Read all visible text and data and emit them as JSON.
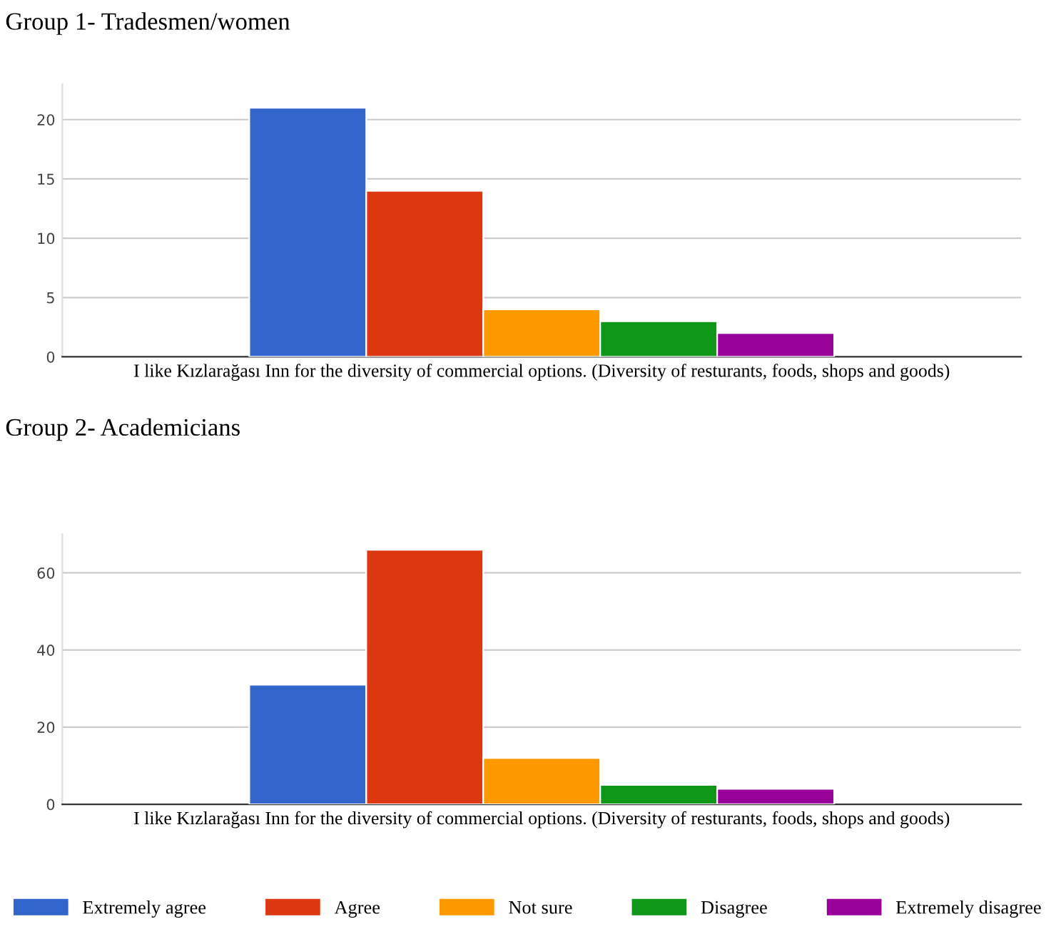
{
  "chart_data": [
    {
      "type": "bar",
      "title": "Group 1- Tradesmen/women",
      "categories": [
        "I like Kızlarağası Inn for the diversity of commercial options. (Diversity of resturants, foods, shops and goods)"
      ],
      "ylim": [
        0,
        23
      ],
      "yticks": [
        0,
        5,
        10,
        15,
        20
      ],
      "grid": "y",
      "legend": false,
      "series": [
        {
          "color": "#3366cc",
          "values": [
            21
          ]
        },
        {
          "color": "#dc3912",
          "values": [
            14
          ]
        },
        {
          "color": "#ff9900",
          "values": [
            4
          ]
        },
        {
          "color": "#109618",
          "values": [
            3
          ]
        },
        {
          "color": "#990099",
          "values": [
            2
          ]
        }
      ]
    },
    {
      "type": "bar",
      "title": "Group 2- Academicians",
      "categories": [
        "I like Kızlarağası Inn for the diversity of commercial options. (Diversity of resturants, foods, shops and goods)"
      ],
      "ylim": [
        0,
        70
      ],
      "yticks": [
        0,
        20,
        40,
        60
      ],
      "grid": "y",
      "legend": "bottom",
      "series": [
        {
          "name": "Extremely agree",
          "color": "#3366cc",
          "values": [
            31
          ]
        },
        {
          "name": "Agree",
          "color": "#dc3912",
          "values": [
            66
          ]
        },
        {
          "name": "Not sure",
          "color": "#ff9900",
          "values": [
            12
          ]
        },
        {
          "name": "Disagree",
          "color": "#109618",
          "values": [
            5
          ]
        },
        {
          "name": "Extremely disagree",
          "color": "#990099",
          "values": [
            4
          ]
        }
      ]
    }
  ]
}
